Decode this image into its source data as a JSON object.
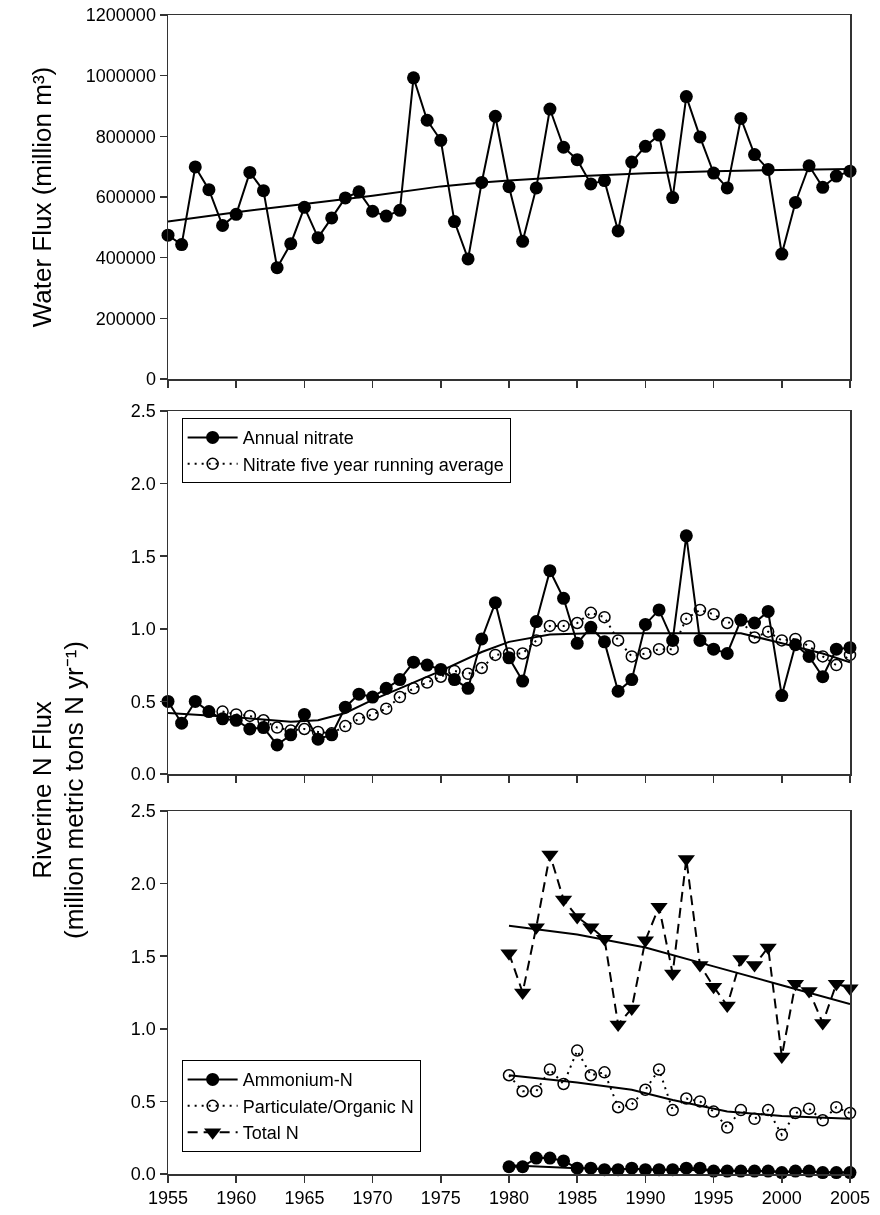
{
  "chart_data": [
    {
      "type": "line",
      "ylabel": "Water Flux (million m³)",
      "xlim": [
        1955,
        2005
      ],
      "xticks": [
        {
          "value": 1955,
          "label": null
        },
        {
          "value": 1960,
          "label": null
        },
        {
          "value": 1965,
          "label": null
        },
        {
          "value": 1970,
          "label": null
        },
        {
          "value": 1975,
          "label": null
        },
        {
          "value": 1980,
          "label": null
        },
        {
          "value": 1985,
          "label": null
        },
        {
          "value": 1990,
          "label": null
        },
        {
          "value": 1995,
          "label": null
        },
        {
          "value": 2000,
          "label": null
        },
        {
          "value": 2005,
          "label": null
        }
      ],
      "ylim": [
        0,
        1200000
      ],
      "yticks": [
        0,
        200000,
        400000,
        600000,
        800000,
        1000000,
        1200000
      ],
      "tick_labels": "y",
      "legend": false,
      "x": [
        1955,
        1956,
        1957,
        1958,
        1959,
        1960,
        1961,
        1962,
        1963,
        1964,
        1965,
        1966,
        1967,
        1968,
        1969,
        1970,
        1971,
        1972,
        1973,
        1974,
        1975,
        1976,
        1977,
        1978,
        1979,
        1980,
        1981,
        1982,
        1983,
        1984,
        1985,
        1986,
        1987,
        1988,
        1989,
        1990,
        1991,
        1992,
        1993,
        1994,
        1995,
        1996,
        1997,
        1998,
        1999,
        2000,
        2001,
        2002,
        2003,
        2004,
        2005
      ],
      "series": [
        {
          "color": "#000000",
          "marker": "circle",
          "line_style": "solid",
          "values": [
            474000,
            443000,
            699000,
            624000,
            506000,
            543000,
            681000,
            621000,
            367000,
            446000,
            566000,
            466000,
            531000,
            597000,
            617000,
            553000,
            537000,
            556000,
            993000,
            853000,
            787000,
            519000,
            396000,
            648000,
            866000,
            634000,
            454000,
            630000,
            890000,
            764000,
            723000,
            643000,
            654000,
            488000,
            715000,
            767000,
            804000,
            598000,
            931000,
            798000,
            679000,
            630000,
            859000,
            740000,
            691000,
            412000,
            582000,
            703000,
            632000,
            669000,
            685000
          ]
        },
        {
          "color": "#000000",
          "marker": "none",
          "line_style": "solid",
          "x": [
            1955,
            1960,
            1965,
            1970,
            1975,
            1978,
            1980,
            1985,
            1990,
            1995,
            2000,
            2005
          ],
          "values": [
            519000,
            550000,
            577000,
            604000,
            635000,
            648000,
            654000,
            668000,
            678000,
            685000,
            689000,
            692000
          ]
        }
      ]
    },
    {
      "type": "line",
      "ylabel": "Riverine N Flux\n(million metric tons N yr⁻¹)",
      "xlim": [
        1955,
        2005
      ],
      "xticks": [
        {
          "value": 1955,
          "label": null
        },
        {
          "value": 1960,
          "label": null
        },
        {
          "value": 1965,
          "label": null
        },
        {
          "value": 1970,
          "label": null
        },
        {
          "value": 1975,
          "label": null
        },
        {
          "value": 1980,
          "label": null
        },
        {
          "value": 1985,
          "label": null
        },
        {
          "value": 1990,
          "label": null
        },
        {
          "value": 1995,
          "label": null
        },
        {
          "value": 2000,
          "label": null
        },
        {
          "value": 2005,
          "label": null
        }
      ],
      "ylim": [
        0,
        2.5
      ],
      "yticks": [
        {
          "value": 0,
          "label": "0.0"
        },
        0.5,
        {
          "value": 1,
          "label": "1.0"
        },
        1.5,
        {
          "value": 2,
          "label": "2.0"
        },
        2.5
      ],
      "tick_labels": "y",
      "legend": "top left",
      "x": [
        1955,
        1956,
        1957,
        1958,
        1959,
        1960,
        1961,
        1962,
        1963,
        1964,
        1965,
        1966,
        1967,
        1968,
        1969,
        1970,
        1971,
        1972,
        1973,
        1974,
        1975,
        1976,
        1977,
        1978,
        1979,
        1980,
        1981,
        1982,
        1983,
        1984,
        1985,
        1986,
        1987,
        1988,
        1989,
        1990,
        1991,
        1992,
        1993,
        1994,
        1995,
        1996,
        1997,
        1998,
        1999,
        2000,
        2001,
        2002,
        2003,
        2004,
        2005
      ],
      "series": [
        {
          "name": "Annual nitrate",
          "color": "#000000",
          "marker": "circle",
          "line_style": "solid",
          "values": [
            0.5,
            0.35,
            0.5,
            0.43,
            0.38,
            0.37,
            0.31,
            0.32,
            0.2,
            0.27,
            0.41,
            0.24,
            0.27,
            0.46,
            0.55,
            0.53,
            0.59,
            0.65,
            0.77,
            0.75,
            0.72,
            0.65,
            0.59,
            0.93,
            1.18,
            0.8,
            0.64,
            1.05,
            1.4,
            1.21,
            0.9,
            1.01,
            0.91,
            0.57,
            0.65,
            1.03,
            1.13,
            0.92,
            1.64,
            0.92,
            0.86,
            0.83,
            1.06,
            1.04,
            1.12,
            0.54,
            0.89,
            0.81,
            0.67,
            0.86,
            0.87
          ]
        },
        {
          "name": "Nitrate five year running average",
          "color": "#000000",
          "marker": "circle-open",
          "line_style": "dotted",
          "values": [
            null,
            null,
            null,
            null,
            0.43,
            0.41,
            0.4,
            0.37,
            0.32,
            0.3,
            0.31,
            0.29,
            0.28,
            0.33,
            0.38,
            0.41,
            0.45,
            0.53,
            0.59,
            0.63,
            0.67,
            0.71,
            0.69,
            0.73,
            0.82,
            0.83,
            0.83,
            0.92,
            1.02,
            1.02,
            1.04,
            1.11,
            1.08,
            0.92,
            0.81,
            0.83,
            0.86,
            0.86,
            1.07,
            1.13,
            1.1,
            1.04,
            1.06,
            0.94,
            0.98,
            0.92,
            0.93,
            0.88,
            0.81,
            0.75,
            0.82
          ]
        },
        {
          "color": "#000000",
          "marker": "none",
          "line_style": "solid",
          "x": [
            1955,
            1960,
            1964,
            1966,
            1968,
            1970,
            1972,
            1975,
            1978,
            1980,
            1983,
            1986,
            1990,
            1995,
            1997,
            2000,
            2003,
            2005
          ],
          "values": [
            0.42,
            0.39,
            0.36,
            0.37,
            0.42,
            0.51,
            0.59,
            0.71,
            0.84,
            0.91,
            0.96,
            0.97,
            0.97,
            0.97,
            0.97,
            0.9,
            0.83,
            0.77
          ]
        }
      ]
    },
    {
      "type": "line",
      "xlim": [
        1955,
        2005
      ],
      "xticks": [
        1955,
        1960,
        1965,
        1970,
        1975,
        1980,
        1985,
        1990,
        1995,
        2000,
        2005
      ],
      "ylim": [
        0,
        2.5
      ],
      "yticks": [
        {
          "value": 0,
          "label": "0.0"
        },
        0.5,
        {
          "value": 1,
          "label": "1.0"
        },
        1.5,
        {
          "value": 2,
          "label": "2.0"
        },
        2.5
      ],
      "legend": "bottom left",
      "series": [
        {
          "name": "Ammonium-N",
          "color": "#000000",
          "marker": "circle",
          "line_style": "solid",
          "x": [
            1980,
            1981,
            1982,
            1983,
            1984,
            1985,
            1986,
            1987,
            1988,
            1989,
            1990,
            1991,
            1992,
            1993,
            1994,
            1995,
            1996,
            1997,
            1998,
            1999,
            2000,
            2001,
            2002,
            2003,
            2004,
            2005
          ],
          "values": [
            0.05,
            0.05,
            0.11,
            0.11,
            0.09,
            0.04,
            0.04,
            0.03,
            0.03,
            0.04,
            0.03,
            0.03,
            0.03,
            0.04,
            0.04,
            0.02,
            0.02,
            0.02,
            0.02,
            0.02,
            0.01,
            0.02,
            0.02,
            0.01,
            0.01,
            0.01
          ]
        },
        {
          "name": "Particulate/Organic N",
          "color": "#000000",
          "marker": "circle-open",
          "line_style": "dotted",
          "x": [
            1980,
            1981,
            1982,
            1983,
            1984,
            1985,
            1986,
            1987,
            1988,
            1989,
            1990,
            1991,
            1992,
            1993,
            1994,
            1995,
            1996,
            1997,
            1998,
            1999,
            2000,
            2001,
            2002,
            2003,
            2004,
            2005
          ],
          "values": [
            0.68,
            0.57,
            0.57,
            0.72,
            0.62,
            0.85,
            0.68,
            0.7,
            0.46,
            0.48,
            0.58,
            0.72,
            0.44,
            0.52,
            0.5,
            0.43,
            0.32,
            0.44,
            0.38,
            0.44,
            0.27,
            0.42,
            0.45,
            0.37,
            0.46,
            0.42
          ]
        },
        {
          "name": "Total N",
          "color": "#000000",
          "marker": "triangle",
          "line_style": "dashed",
          "x": [
            1980,
            1981,
            1982,
            1983,
            1984,
            1985,
            1986,
            1987,
            1988,
            1989,
            1990,
            1991,
            1992,
            1993,
            1994,
            1995,
            1996,
            1997,
            1998,
            1999,
            2000,
            2001,
            2002,
            2003,
            2004,
            2005
          ],
          "values": [
            1.52,
            1.25,
            1.7,
            2.2,
            1.89,
            1.77,
            1.7,
            1.62,
            1.03,
            1.14,
            1.61,
            1.84,
            1.38,
            2.17,
            1.44,
            1.29,
            1.16,
            1.48,
            1.44,
            1.56,
            0.81,
            1.31,
            1.26,
            1.04,
            1.31,
            1.28
          ]
        },
        {
          "color": "#000000",
          "marker": "none",
          "line_style": "solid",
          "x": [
            1980,
            1985,
            2005
          ],
          "values": [
            0.06,
            0.04,
            0.01
          ]
        },
        {
          "color": "#000000",
          "marker": "none",
          "line_style": "solid",
          "x": [
            1980,
            1985,
            1989,
            1992,
            1996,
            2000,
            2005
          ],
          "values": [
            0.68,
            0.63,
            0.58,
            0.51,
            0.43,
            0.4,
            0.38
          ]
        },
        {
          "color": "#000000",
          "marker": "none",
          "line_style": "solid",
          "x": [
            1980,
            1985,
            1990,
            1995,
            2000,
            2005
          ],
          "values": [
            1.71,
            1.65,
            1.56,
            1.43,
            1.3,
            1.17
          ]
        }
      ]
    }
  ]
}
